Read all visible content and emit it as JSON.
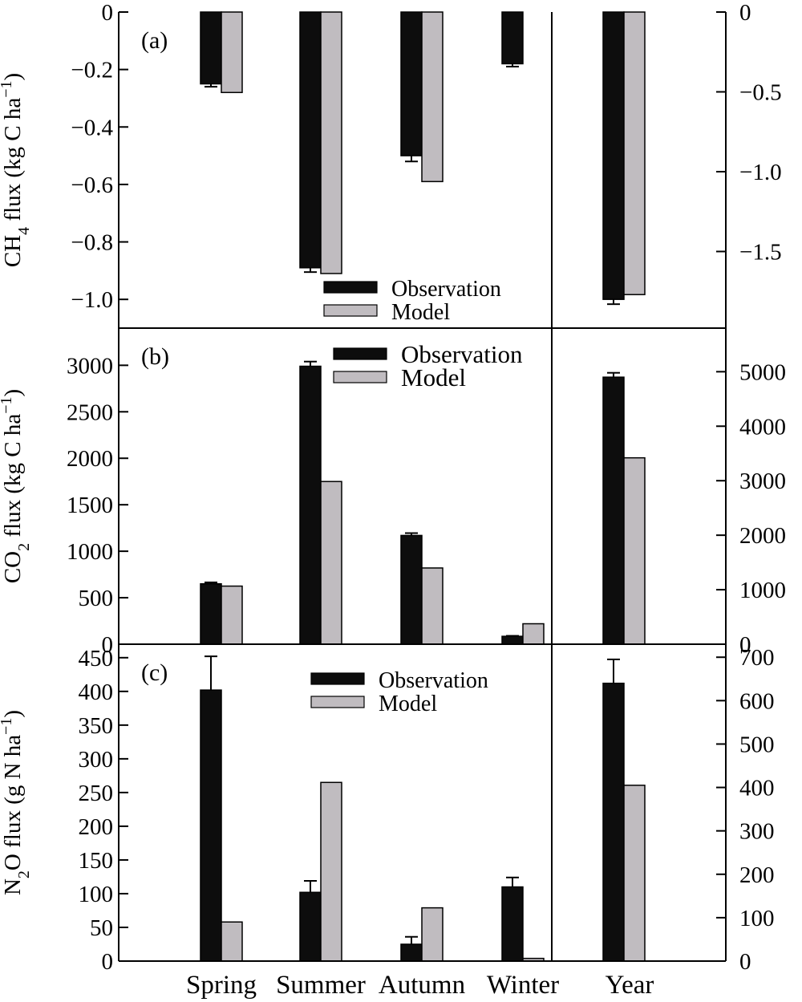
{
  "chart_data": [
    {
      "id": "a",
      "type": "bar",
      "panel_label": "(a)",
      "ylabel_main": "CH",
      "ylabel_sub": "4",
      "ylabel_rest": " flux (kg C ha",
      "ylabel_sup": "−1",
      "ylabel_close": ")",
      "left_ylim": [
        -1.1,
        0
      ],
      "left_ticks": [
        {
          "v": 0,
          "label": "0"
        },
        {
          "v": -0.2,
          "label": "−0.2"
        },
        {
          "v": -0.4,
          "label": "−0.4"
        },
        {
          "v": -0.6,
          "label": "−0.6"
        },
        {
          "v": -0.8,
          "label": "−0.8"
        },
        {
          "v": -1.0,
          "label": "−1.0"
        }
      ],
      "right_ylim": [
        -1.98,
        0
      ],
      "right_ticks": [
        {
          "v": 0,
          "label": "0"
        },
        {
          "v": -0.5,
          "label": "−0.5"
        },
        {
          "v": -1.0,
          "label": "−1.0"
        },
        {
          "v": -1.5,
          "label": "−1.5"
        }
      ],
      "categories": [
        "Spring",
        "Summer",
        "Autumn",
        "Winter"
      ],
      "series": [
        {
          "name": "Observation",
          "color": "#0d0d0d",
          "values": [
            -0.25,
            -0.89,
            -0.5,
            -0.18
          ],
          "errors": [
            0.01,
            0.015,
            0.02,
            0.01
          ]
        },
        {
          "name": "Model",
          "color": "#c0bcc0",
          "values": [
            -0.28,
            -0.91,
            -0.59,
            null
          ],
          "errors": [
            0,
            0,
            0,
            0
          ]
        }
      ],
      "year": {
        "category": "Year",
        "values": [
          -1.8,
          -1.77
        ],
        "errors": [
          0.03,
          0
        ]
      },
      "legend": {
        "position": "bottom-center",
        "entries": [
          "Observation",
          "Model"
        ]
      }
    },
    {
      "id": "b",
      "type": "bar",
      "panel_label": "(b)",
      "ylabel_main": "CO",
      "ylabel_sub": "2",
      "ylabel_rest": " flux (kg C ha",
      "ylabel_sup": "−1",
      "ylabel_close": ")",
      "left_ylim": [
        0,
        3400
      ],
      "left_ticks": [
        {
          "v": 0,
          "label": "0"
        },
        {
          "v": 500,
          "label": "500"
        },
        {
          "v": 1000,
          "label": "1000"
        },
        {
          "v": 1500,
          "label": "1500"
        },
        {
          "v": 2000,
          "label": "2000"
        },
        {
          "v": 2500,
          "label": "2500"
        },
        {
          "v": 3000,
          "label": "3000"
        }
      ],
      "right_ylim": [
        0,
        5800
      ],
      "right_ticks": [
        {
          "v": 0,
          "label": "0"
        },
        {
          "v": 1000,
          "label": "1000"
        },
        {
          "v": 2000,
          "label": "2000"
        },
        {
          "v": 3000,
          "label": "3000"
        },
        {
          "v": 4000,
          "label": "4000"
        },
        {
          "v": 5000,
          "label": "5000"
        }
      ],
      "categories": [
        "Spring",
        "Summer",
        "Autumn",
        "Winter"
      ],
      "series": [
        {
          "name": "Observation",
          "color": "#0d0d0d",
          "values": [
            650,
            2990,
            1170,
            85
          ],
          "errors": [
            15,
            50,
            25,
            5
          ]
        },
        {
          "name": "Model",
          "color": "#c0bcc0",
          "values": [
            625,
            1750,
            820,
            220
          ],
          "errors": [
            0,
            0,
            0,
            0
          ]
        }
      ],
      "year": {
        "category": "Year",
        "values": [
          4900,
          3420
        ],
        "errors": [
          80,
          0
        ]
      },
      "legend": {
        "position": "top-center",
        "entries": [
          "Observation",
          "Model"
        ]
      }
    },
    {
      "id": "c",
      "type": "bar",
      "panel_label": "(c)",
      "ylabel_main": "N",
      "ylabel_sub": "2",
      "ylabel_rest": "O flux (g N ha",
      "ylabel_sup": "−1",
      "ylabel_close": ")",
      "left_ylim": [
        0,
        470
      ],
      "left_ticks": [
        {
          "v": 0,
          "label": "0"
        },
        {
          "v": 50,
          "label": "50"
        },
        {
          "v": 100,
          "label": "100"
        },
        {
          "v": 150,
          "label": "150"
        },
        {
          "v": 200,
          "label": "200"
        },
        {
          "v": 250,
          "label": "250"
        },
        {
          "v": 300,
          "label": "300"
        },
        {
          "v": 350,
          "label": "350"
        },
        {
          "v": 400,
          "label": "400"
        },
        {
          "v": 450,
          "label": "450"
        }
      ],
      "right_ylim": [
        0,
        730
      ],
      "right_ticks": [
        {
          "v": 0,
          "label": "0"
        },
        {
          "v": 100,
          "label": "100"
        },
        {
          "v": 200,
          "label": "200"
        },
        {
          "v": 300,
          "label": "300"
        },
        {
          "v": 400,
          "label": "400"
        },
        {
          "v": 500,
          "label": "500"
        },
        {
          "v": 600,
          "label": "600"
        },
        {
          "v": 700,
          "label": "700"
        }
      ],
      "categories": [
        "Spring",
        "Summer",
        "Autumn",
        "Winter"
      ],
      "series": [
        {
          "name": "Observation",
          "color": "#0d0d0d",
          "values": [
            402,
            102,
            25,
            110
          ],
          "errors": [
            50,
            17,
            11,
            14
          ]
        },
        {
          "name": "Model",
          "color": "#c0bcc0",
          "values": [
            58,
            265,
            79,
            4
          ],
          "errors": [
            0,
            0,
            0,
            0
          ]
        }
      ],
      "year": {
        "category": "Year",
        "values": [
          640,
          405
        ],
        "errors": [
          55,
          0
        ]
      },
      "legend": {
        "position": "top-center",
        "entries": [
          "Observation",
          "Model"
        ]
      }
    }
  ],
  "x_tick_labels": [
    "Spring",
    "Summer",
    "Autumn",
    "Winter",
    "Year"
  ]
}
